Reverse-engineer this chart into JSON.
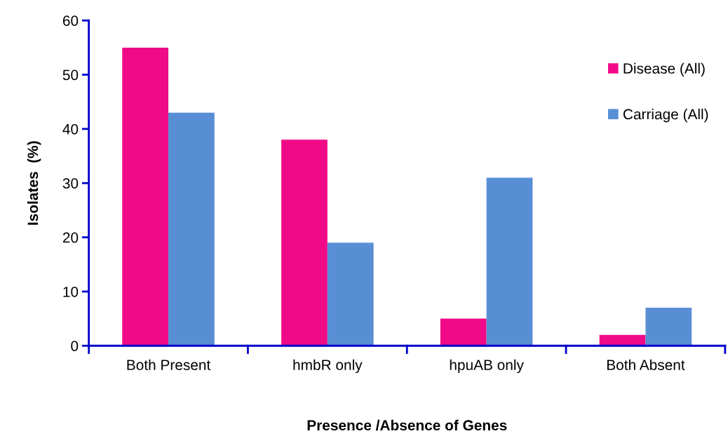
{
  "chart_data": {
    "type": "bar",
    "xlabel": "Presence /Absence of Genes",
    "ylabel": "Isolates  (%)",
    "categories": [
      "Both Present",
      "hmbR only",
      "hpuAB only",
      "Both Absent"
    ],
    "series": [
      {
        "name": "Disease (All)",
        "color": "#f00a87",
        "values": [
          55,
          38,
          5,
          2
        ]
      },
      {
        "name": "Carriage (All)",
        "color": "#588fd4",
        "values": [
          43,
          19,
          31,
          7
        ]
      }
    ],
    "ylim": [
      0,
      60
    ],
    "yticks": [
      0,
      10,
      20,
      30,
      40,
      50,
      60
    ],
    "grid": false,
    "legend": "top right"
  }
}
